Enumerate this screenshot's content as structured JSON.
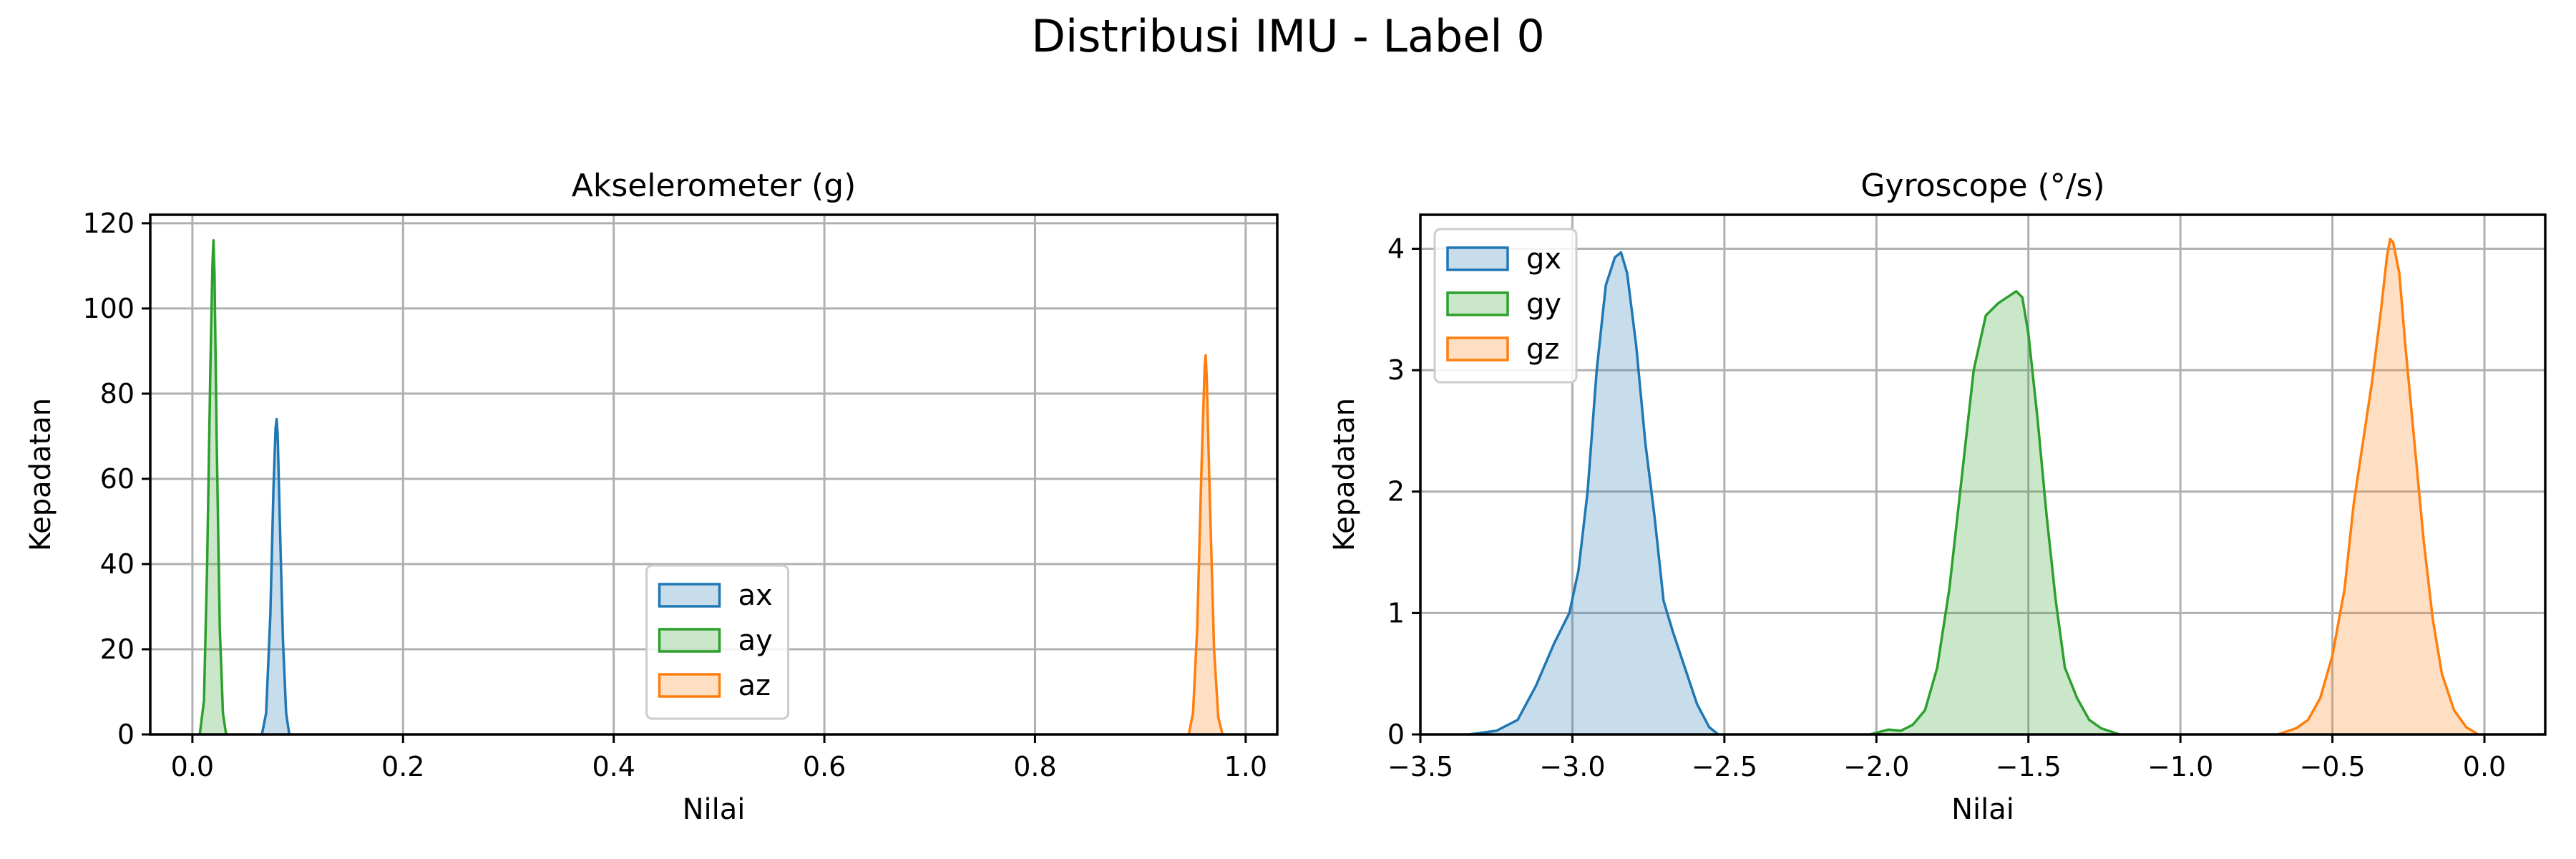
{
  "figure": {
    "title": "Distribusi IMU - Label 0"
  },
  "chart_data": [
    {
      "type": "area",
      "subtype": "kde",
      "title": "Akselerometer (g)",
      "xlabel": "Nilai",
      "ylabel": "Kepadatan",
      "xlim": [
        -0.04,
        1.03
      ],
      "ylim": [
        0,
        122
      ],
      "xticks": [
        "0.0",
        "0.2",
        "0.4",
        "0.6",
        "0.8",
        "1.0"
      ],
      "yticks": [
        "0",
        "20",
        "40",
        "60",
        "80",
        "100",
        "120"
      ],
      "xtick_values": [
        0,
        0.2,
        0.4,
        0.6,
        0.8,
        1.0
      ],
      "ytick_values": [
        0,
        20,
        40,
        60,
        80,
        100,
        120
      ],
      "grid": true,
      "legend_position": "lower-center",
      "series": [
        {
          "name": "ax",
          "color": "#1f77b4",
          "x": [
            0.066,
            0.07,
            0.074,
            0.077,
            0.079,
            0.08,
            0.081,
            0.083,
            0.086,
            0.089,
            0.092
          ],
          "y": [
            0,
            5,
            28,
            58,
            72,
            74,
            70,
            50,
            22,
            5,
            0
          ]
        },
        {
          "name": "ay",
          "color": "#2ca02c",
          "x": [
            0.007,
            0.011,
            0.014,
            0.017,
            0.019,
            0.02,
            0.021,
            0.023,
            0.026,
            0.029,
            0.032
          ],
          "y": [
            0,
            8,
            40,
            85,
            110,
            116,
            108,
            70,
            25,
            5,
            0
          ]
        },
        {
          "name": "az",
          "color": "#ff7f0e",
          "x": [
            0.946,
            0.95,
            0.954,
            0.958,
            0.961,
            0.962,
            0.963,
            0.966,
            0.97,
            0.974,
            0.978
          ],
          "y": [
            0,
            5,
            25,
            62,
            86,
            89,
            84,
            55,
            20,
            4,
            0
          ]
        }
      ]
    },
    {
      "type": "area",
      "subtype": "kde",
      "title": "Gyroscope (°/s)",
      "xlabel": "Nilai",
      "ylabel": "Kepadatan",
      "xlim": [
        -3.5,
        0.2
      ],
      "ylim": [
        0,
        4.28
      ],
      "xticks": [
        "−3.5",
        "−3.0",
        "−2.5",
        "−2.0",
        "−1.5",
        "−1.0",
        "−0.5",
        "0.0"
      ],
      "yticks": [
        "0",
        "1",
        "2",
        "3",
        "4"
      ],
      "xtick_values": [
        -3.5,
        -3.0,
        -2.5,
        -2.0,
        -1.5,
        -1.0,
        -0.5,
        0.0
      ],
      "ytick_values": [
        0,
        1,
        2,
        3,
        4
      ],
      "grid": true,
      "legend_position": "upper-left",
      "series": [
        {
          "name": "gx",
          "color": "#1f77b4",
          "x": [
            -3.34,
            -3.25,
            -3.18,
            -3.12,
            -3.06,
            -3.01,
            -2.98,
            -2.95,
            -2.92,
            -2.89,
            -2.86,
            -2.84,
            -2.82,
            -2.79,
            -2.76,
            -2.73,
            -2.7,
            -2.67,
            -2.63,
            -2.59,
            -2.55,
            -2.52
          ],
          "y": [
            0,
            0.03,
            0.12,
            0.4,
            0.75,
            1.0,
            1.35,
            2.0,
            3.0,
            3.7,
            3.93,
            3.97,
            3.8,
            3.2,
            2.4,
            1.8,
            1.1,
            0.85,
            0.55,
            0.25,
            0.06,
            0
          ]
        },
        {
          "name": "gy",
          "color": "#2ca02c",
          "x": [
            -2.02,
            -1.96,
            -1.92,
            -1.88,
            -1.84,
            -1.8,
            -1.76,
            -1.72,
            -1.68,
            -1.64,
            -1.6,
            -1.57,
            -1.54,
            -1.52,
            -1.5,
            -1.47,
            -1.44,
            -1.41,
            -1.38,
            -1.34,
            -1.3,
            -1.26,
            -1.2
          ],
          "y": [
            0,
            0.04,
            0.03,
            0.08,
            0.2,
            0.55,
            1.2,
            2.1,
            3.0,
            3.45,
            3.55,
            3.6,
            3.65,
            3.6,
            3.3,
            2.6,
            1.8,
            1.1,
            0.55,
            0.3,
            0.12,
            0.05,
            0
          ]
        },
        {
          "name": "gz",
          "color": "#ff7f0e",
          "x": [
            -0.68,
            -0.62,
            -0.58,
            -0.54,
            -0.5,
            -0.46,
            -0.43,
            -0.4,
            -0.37,
            -0.34,
            -0.32,
            -0.31,
            -0.3,
            -0.28,
            -0.26,
            -0.23,
            -0.2,
            -0.17,
            -0.14,
            -0.1,
            -0.06,
            -0.02
          ],
          "y": [
            0,
            0.05,
            0.12,
            0.3,
            0.65,
            1.2,
            1.9,
            2.4,
            2.9,
            3.5,
            3.95,
            4.08,
            4.05,
            3.8,
            3.2,
            2.4,
            1.6,
            0.95,
            0.5,
            0.2,
            0.06,
            0
          ]
        }
      ]
    }
  ]
}
